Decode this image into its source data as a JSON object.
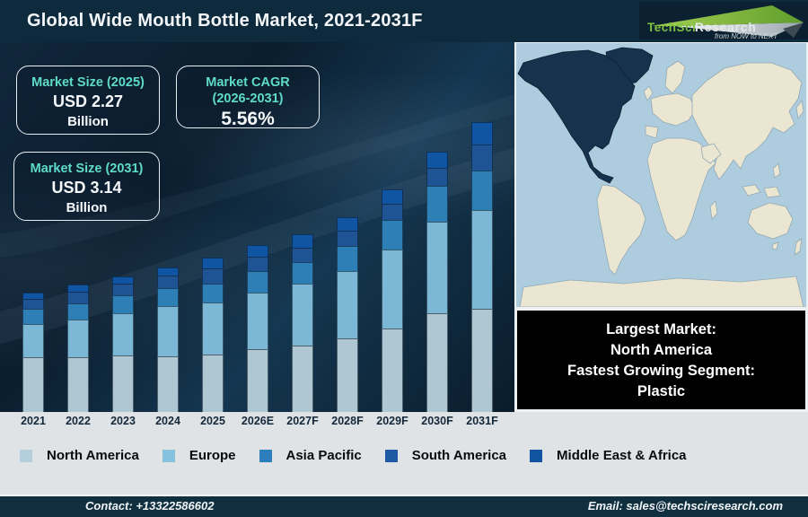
{
  "header": {
    "title": "Global Wide Mouth Bottle Market, 2021-2031F",
    "logo": {
      "brand_primary": "TechSci",
      "brand_secondary": "Research",
      "tagline": "from NOW to NEXT"
    }
  },
  "stat_boxes": [
    {
      "label": "Market Size (2025)",
      "value": "USD 2.27",
      "unit": "Billion"
    },
    {
      "label": "Market CAGR",
      "label_line2": "(2026-2031)",
      "value": "5.56%"
    },
    {
      "label": "Market Size (2031)",
      "value": "USD 3.14",
      "unit": "Billion"
    }
  ],
  "map_callout": {
    "line1": "Largest Market:",
    "line2": "North America",
    "line3": "Fastest Growing Segment:",
    "line4": "Plastic"
  },
  "chart_data": {
    "type": "bar",
    "subtype": "stacked-vertical",
    "title": "Global Wide Mouth Bottle Market, 2021-2031F",
    "categories": [
      "2021",
      "2022",
      "2023",
      "2024",
      "2025",
      "2026E",
      "2027F",
      "2028F",
      "2029F",
      "2030F",
      "2031F"
    ],
    "series": [
      {
        "name": "North America",
        "color": "#afc7d3",
        "values": [
          61,
          61,
          63,
          62,
          64,
          70,
          74,
          82,
          93,
          110,
          115
        ]
      },
      {
        "name": "Europe",
        "color": "#7cb8d6",
        "values": [
          37,
          42,
          47,
          56,
          58,
          63,
          69,
          75,
          88,
          102,
          110
        ]
      },
      {
        "name": "Asia Pacific",
        "color": "#2e7fb6",
        "values": [
          17,
          18,
          20,
          20,
          21,
          24,
          24,
          28,
          33,
          40,
          44
        ]
      },
      {
        "name": "South America",
        "color": "#1e5394",
        "values": [
          11,
          13,
          13,
          14,
          17,
          16,
          16,
          17,
          18,
          20,
          29
        ]
      },
      {
        "name": "Middle East & Africa",
        "color": "#0f55a4",
        "values": [
          7,
          8,
          8,
          9,
          12,
          13,
          15,
          15,
          16,
          18,
          25
        ]
      }
    ],
    "value_units": "relative stacked-bar height in screen pixels (chart shows no y-axis)",
    "annotations": {
      "market_size_2025": "USD 2.27 Billion",
      "market_size_2031": "USD 3.14 Billion",
      "cagr_2026_2031": "5.56%"
    },
    "xlabel": "",
    "ylabel": "",
    "y_axis_shown": false,
    "grid": false,
    "legend_position": "bottom"
  },
  "legend": {
    "items": [
      {
        "label": "North America",
        "color": "#b4cedb"
      },
      {
        "label": "Europe",
        "color": "#85c2de"
      },
      {
        "label": "Asia Pacific",
        "color": "#2b7fbd"
      },
      {
        "label": "South America",
        "color": "#1e5aa4"
      },
      {
        "label": "Middle East & Africa",
        "color": "#1254a2"
      }
    ]
  },
  "map": {
    "highlight_region": "North America",
    "ocean_color": "#adccdd",
    "land_color": "#ebe6d1",
    "highlight_color": "#16324c"
  },
  "footer": {
    "contact": "Contact: +13322586602",
    "email": "Email: sales@techsciresearch.com"
  }
}
